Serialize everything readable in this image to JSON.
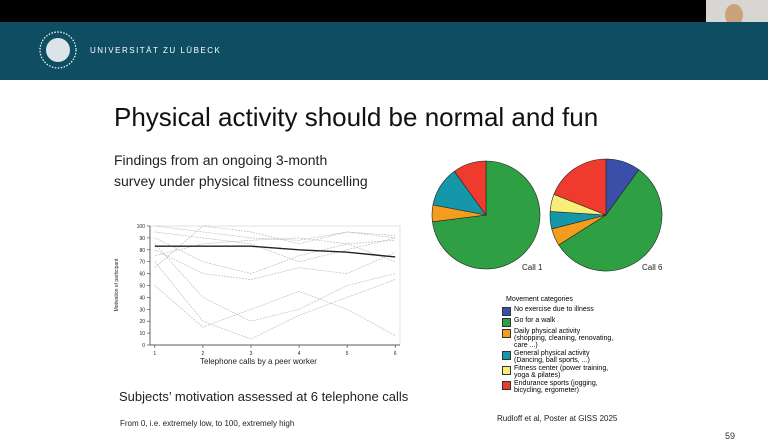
{
  "header": {
    "institution": "UNIVERSITÄT ZU LÜBECK"
  },
  "slide": {
    "title": "Physical activity should be normal and fun",
    "subtitle_lines": [
      "Findings from an ongoing 3-month",
      "survey under physical fitness councelling"
    ],
    "caption": "Subjects’ motivation assessed at 6 telephone calls",
    "note": "From 0, i.e. extremely low, to 100, extremely high",
    "citation": "Rudloff et al, Poster at GISS 2025",
    "page_number": "59"
  },
  "line_chart": {
    "type": "line",
    "x_label": "Telephone calls by a peer worker",
    "y_label": "Motivation of participant",
    "x": [
      1,
      2,
      3,
      4,
      5,
      6
    ],
    "xlim": [
      0.9,
      6.1
    ],
    "xticks": [
      1,
      2,
      3,
      4,
      5,
      6
    ],
    "ylim": [
      0,
      100
    ],
    "yticks": [
      0,
      10,
      20,
      30,
      40,
      50,
      60,
      70,
      80,
      90,
      100
    ],
    "series": [
      {
        "color": "#b5b5b5",
        "values": [
          100,
          95,
          90,
          88,
          95,
          92
        ]
      },
      {
        "color": "#b5b5b5",
        "values": [
          95,
          90,
          85,
          70,
          80,
          90
        ]
      },
      {
        "color": "#b5b5b5",
        "values": [
          90,
          70,
          60,
          75,
          85,
          88
        ]
      },
      {
        "color": "#b5b5b5",
        "values": [
          85,
          40,
          20,
          30,
          50,
          60
        ]
      },
      {
        "color": "#b5b5b5",
        "values": [
          80,
          60,
          55,
          65,
          60,
          78
        ]
      },
      {
        "color": "#b5b5b5",
        "values": [
          75,
          85,
          88,
          90,
          85,
          70
        ]
      },
      {
        "color": "#b5b5b5",
        "values": [
          70,
          20,
          5,
          25,
          40,
          55
        ]
      },
      {
        "color": "#b5b5b5",
        "values": [
          50,
          15,
          30,
          45,
          30,
          8
        ]
      },
      {
        "color": "#b5b5b5",
        "values": [
          65,
          100,
          95,
          85,
          95,
          90
        ]
      },
      {
        "color": "#222222",
        "values": [
          83,
          83,
          83,
          80,
          78,
          74
        ]
      }
    ]
  },
  "pie_charts": [
    {
      "type": "pie",
      "label": "Call 1",
      "values": [
        0,
        73,
        5,
        12,
        0,
        10
      ]
    },
    {
      "type": "pie",
      "label": "Call 6",
      "values": [
        10,
        56,
        5,
        5,
        5,
        19
      ]
    }
  ],
  "legend": {
    "title": "Movement categories",
    "categories": [
      "No exercise due to illness",
      "Go for a walk",
      "Daily physical activity (shopping, cleaning, renovating, care ...)",
      "General physical activity (Dancing, ball sports, ...)",
      "Fitness center (power training, yoga & pilates)",
      "Endurance sports (jogging, bicycling, ergometer)"
    ],
    "colors": [
      "#3a4fa8",
      "#2ea043",
      "#f39c1e",
      "#1497a8",
      "#f7ee7a",
      "#ee3b2e"
    ]
  }
}
